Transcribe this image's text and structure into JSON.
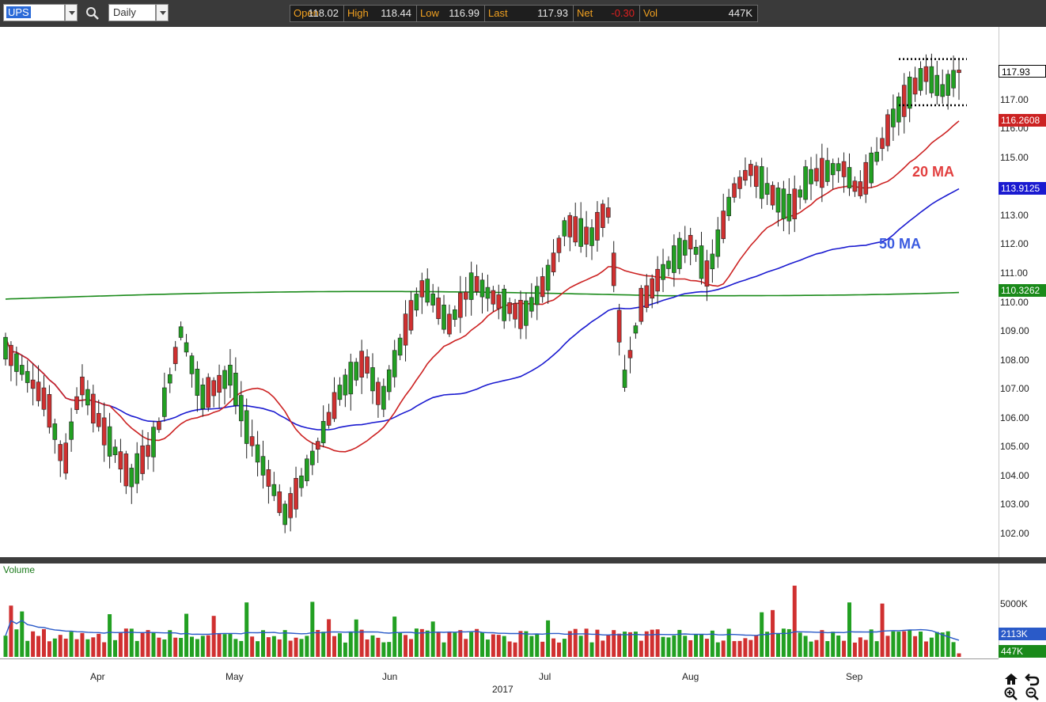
{
  "toolbar": {
    "symbol": "UPS",
    "period": "Daily"
  },
  "quote": [
    {
      "label": "Open",
      "value": "118.02",
      "color": "#e6e6e6"
    },
    {
      "label": "High",
      "value": "118.44",
      "color": "#e6e6e6"
    },
    {
      "label": "Low",
      "value": "116.99",
      "color": "#e6e6e6"
    },
    {
      "label": "Last",
      "value": "117.93",
      "color": "#e6e6e6"
    },
    {
      "label": "Net",
      "value": "-0.30",
      "color": "#e02020"
    },
    {
      "label": "Vol",
      "value": "447K",
      "color": "#e6e6e6"
    }
  ],
  "chart": {
    "price_ticks": [
      "118.00",
      "117.00",
      "116.00",
      "115.00",
      "114.00",
      "113.00",
      "112.00",
      "111.00",
      "110.00",
      "109.00",
      "108.00",
      "107.00",
      "106.00",
      "105.00",
      "104.00",
      "103.00",
      "102.00"
    ],
    "last_price_tag": "117.93",
    "ma20_tag": "116.2608",
    "ma50_tag": "113.9125",
    "ma200_tag": "110.3262",
    "ma20_label": "20 MA",
    "ma50_label": "50 MA",
    "volume_title": "Volume",
    "volume_ticks": [
      "5000K",
      "0"
    ],
    "volume_avg_tag": "2113K",
    "volume_last_tag": "447K",
    "month_labels": [
      "Apr",
      "May",
      "Jun",
      "Jul",
      "Aug",
      "Sep"
    ],
    "year_label": "2017",
    "colors": {
      "up": "#22a022",
      "down": "#d03030",
      "ma20": "#cc2222",
      "ma50": "#1a1ad0",
      "ma200": "#1a8a1a",
      "vol_avg": "#2a5ac8"
    }
  },
  "chart_data": {
    "type": "candlestick",
    "ylim": [
      101.4,
      119.0
    ],
    "date_range": [
      "2017-03-06",
      "2017-09-25"
    ],
    "last": {
      "open": 118.02,
      "high": 118.44,
      "low": 116.99,
      "close": 117.93,
      "volume_k": 447
    },
    "ma20_last": 116.2608,
    "ma50_last": 113.9125,
    "ma200_last": 110.3262,
    "volume_avg_last_k": 2113,
    "annotation": {
      "type": "consolidation-box",
      "top": 118.4,
      "bottom": 116.8,
      "from": "2017-09-11",
      "to": "2017-09-25"
    }
  },
  "icons": [
    "search-icon",
    "home-icon",
    "undo-icon",
    "zoom-in-icon",
    "zoom-out-icon"
  ]
}
